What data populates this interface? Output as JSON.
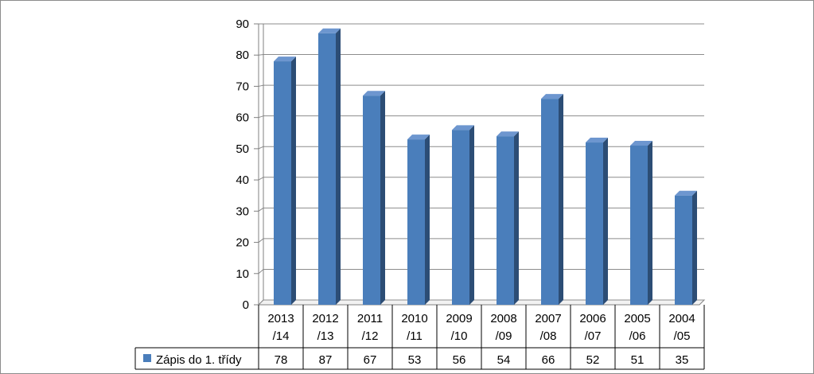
{
  "chart_data": {
    "type": "bar",
    "categories": [
      [
        "2013",
        "/14"
      ],
      [
        "2012",
        "/13"
      ],
      [
        "2011",
        "/12"
      ],
      [
        "2010",
        "/11"
      ],
      [
        "2009",
        "/10"
      ],
      [
        "2008",
        "/09"
      ],
      [
        "2007",
        "/08"
      ],
      [
        "2006",
        "/07"
      ],
      [
        "2005",
        "/06"
      ],
      [
        "2004",
        "/05"
      ]
    ],
    "series": [
      {
        "name": "Zápis do 1. třídy",
        "values": [
          78,
          87,
          67,
          53,
          56,
          54,
          66,
          52,
          51,
          35
        ]
      }
    ],
    "yticks": [
      "0",
      "10",
      "20",
      "30",
      "40",
      "50",
      "60",
      "70",
      "80",
      "90"
    ],
    "ylim": [
      0,
      90
    ],
    "grid": true,
    "data_table": true,
    "colors": {
      "bar_front": "#4a7ebb",
      "bar_side": "#2c4d75",
      "bar_top": "#6d96cf"
    }
  }
}
